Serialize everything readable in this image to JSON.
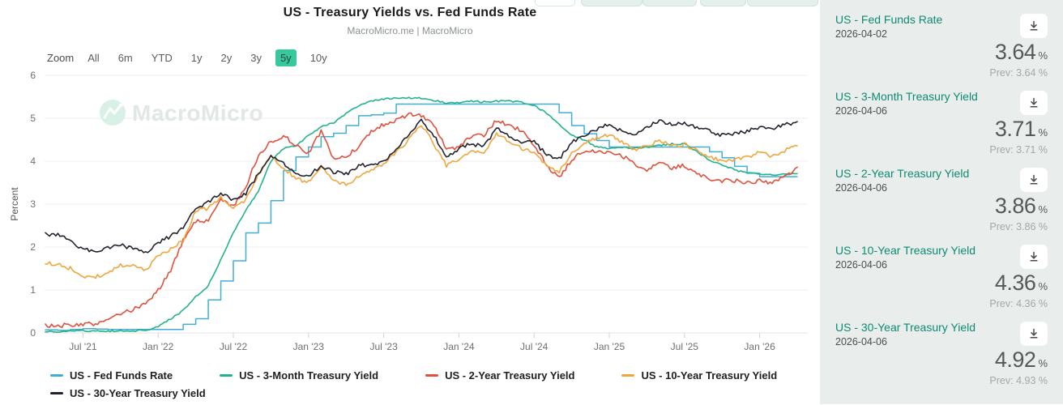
{
  "header": {
    "title": "US - Treasury Yields vs. Fed Funds Rate",
    "subtitle": "MacroMicro.me | MacroMicro"
  },
  "toolbar": {
    "label": "Zoom",
    "buttons": [
      "All",
      "6m",
      "YTD",
      "1y",
      "2y",
      "3y",
      "5y",
      "10y"
    ],
    "selected": "5y"
  },
  "watermark": "MacroMicro",
  "chart_data": {
    "type": "line",
    "title": "US - Treasury Yields vs. Fed Funds Rate",
    "subtitle": "MacroMicro.me | MacroMicro",
    "xlabel": "",
    "ylabel": "Percent",
    "ylim": [
      0,
      6
    ],
    "y_ticks": [
      0,
      1,
      2,
      3,
      4,
      5,
      6
    ],
    "grid": "horizontal",
    "legend_position": "bottom",
    "x_start": "2021-04",
    "x_end": "2026-04",
    "frequency": "monthly",
    "x_tick_labels": [
      "Jul '21",
      "Jan '22",
      "Jul '22",
      "Jan '23",
      "Jul '23",
      "Jan '24",
      "Jul '24",
      "Jan '25",
      "Jul '25",
      "Jan '26"
    ],
    "series": [
      {
        "name": "US - Fed Funds Rate",
        "color": "#41aed4",
        "style": "step",
        "values": [
          0.07,
          0.06,
          0.08,
          0.1,
          0.09,
          0.08,
          0.08,
          0.08,
          0.08,
          0.08,
          0.08,
          0.2,
          0.33,
          0.77,
          1.21,
          1.68,
          2.33,
          2.56,
          3.08,
          3.78,
          4.1,
          4.33,
          4.57,
          4.65,
          4.83,
          5.06,
          5.08,
          5.12,
          5.33,
          5.33,
          5.33,
          5.33,
          5.33,
          5.33,
          5.33,
          5.33,
          5.33,
          5.33,
          5.33,
          5.33,
          5.33,
          5.13,
          4.83,
          4.64,
          4.48,
          4.33,
          4.33,
          4.33,
          4.33,
          4.33,
          4.33,
          4.33,
          4.33,
          4.22,
          4.08,
          3.88,
          3.72,
          3.64,
          3.64,
          3.64,
          3.64
        ]
      },
      {
        "name": "US - 3-Month Treasury Yield",
        "color": "#23b28e",
        "style": "line",
        "values": [
          0.02,
          0.02,
          0.04,
          0.05,
          0.05,
          0.04,
          0.05,
          0.05,
          0.06,
          0.15,
          0.33,
          0.52,
          0.85,
          1.1,
          1.7,
          2.35,
          2.85,
          3.3,
          4.0,
          4.3,
          4.35,
          4.6,
          4.8,
          4.9,
          5.1,
          5.3,
          5.4,
          5.45,
          5.48,
          5.48,
          5.47,
          5.42,
          5.35,
          5.37,
          5.4,
          5.38,
          5.4,
          5.4,
          5.38,
          5.3,
          5.12,
          4.85,
          4.6,
          4.5,
          4.33,
          4.3,
          4.32,
          4.3,
          4.33,
          4.36,
          4.4,
          4.4,
          4.22,
          4.02,
          3.92,
          3.8,
          3.72,
          3.7,
          3.68,
          3.69,
          3.71
        ]
      },
      {
        "name": "US - 2-Year Treasury Yield",
        "color": "#e2503c",
        "style": "line",
        "values": [
          0.16,
          0.15,
          0.2,
          0.2,
          0.22,
          0.27,
          0.45,
          0.55,
          0.7,
          1.0,
          1.45,
          2.15,
          2.6,
          2.62,
          3.1,
          2.95,
          3.4,
          4.15,
          4.45,
          4.6,
          4.35,
          4.2,
          4.7,
          4.05,
          4.1,
          4.35,
          4.7,
          4.85,
          4.95,
          5.1,
          5.05,
          4.85,
          4.3,
          4.32,
          4.6,
          4.6,
          4.95,
          4.85,
          4.7,
          4.4,
          3.9,
          3.6,
          4.05,
          4.25,
          4.25,
          4.2,
          4.12,
          3.95,
          3.78,
          3.95,
          3.85,
          3.9,
          3.7,
          3.6,
          3.55,
          3.55,
          3.5,
          3.55,
          3.5,
          3.62,
          3.86
        ]
      },
      {
        "name": "US - 10-Year Treasury Yield",
        "color": "#f0a63c",
        "style": "line",
        "values": [
          1.62,
          1.6,
          1.5,
          1.3,
          1.3,
          1.42,
          1.58,
          1.55,
          1.45,
          1.8,
          1.95,
          2.15,
          2.85,
          2.9,
          3.15,
          2.9,
          3.1,
          3.7,
          4.1,
          3.85,
          3.6,
          3.5,
          3.9,
          3.55,
          3.45,
          3.65,
          3.8,
          3.95,
          4.2,
          4.5,
          4.85,
          4.4,
          3.9,
          4.05,
          4.25,
          4.2,
          4.65,
          4.45,
          4.3,
          4.2,
          3.9,
          3.75,
          4.2,
          4.4,
          4.55,
          4.6,
          4.45,
          4.25,
          4.35,
          4.5,
          4.35,
          4.4,
          4.25,
          4.1,
          4.0,
          4.05,
          4.1,
          4.2,
          4.12,
          4.25,
          4.36
        ]
      },
      {
        "name": "US - 30-Year Treasury Yield",
        "color": "#23222f",
        "style": "line",
        "values": [
          2.3,
          2.28,
          2.15,
          1.95,
          1.9,
          2.0,
          2.05,
          1.95,
          1.88,
          2.1,
          2.25,
          2.45,
          2.9,
          3.05,
          3.25,
          3.1,
          3.25,
          3.7,
          4.15,
          3.95,
          3.7,
          3.65,
          3.9,
          3.75,
          3.7,
          3.9,
          3.9,
          4.0,
          4.3,
          4.6,
          4.95,
          4.6,
          4.1,
          4.3,
          4.4,
          4.35,
          4.75,
          4.6,
          4.45,
          4.45,
          4.15,
          4.05,
          4.45,
          4.6,
          4.75,
          4.85,
          4.7,
          4.6,
          4.8,
          4.95,
          4.85,
          4.9,
          4.78,
          4.7,
          4.6,
          4.65,
          4.7,
          4.8,
          4.76,
          4.85,
          4.92
        ]
      }
    ]
  },
  "sidebar": {
    "items": [
      {
        "title": "US - Fed Funds Rate",
        "date": "2026-04-02",
        "value": "3.64",
        "unit": "%",
        "prev": "Prev: 3.64 %"
      },
      {
        "title": "US - 3-Month Treasury Yield",
        "date": "2026-04-06",
        "value": "3.71",
        "unit": "%",
        "prev": "Prev: 3.71 %"
      },
      {
        "title": "US - 2-Year Treasury Yield",
        "date": "2026-04-06",
        "value": "3.86",
        "unit": "%",
        "prev": "Prev: 3.86 %"
      },
      {
        "title": "US - 10-Year Treasury Yield",
        "date": "2026-04-06",
        "value": "4.36",
        "unit": "%",
        "prev": "Prev: 4.36 %"
      },
      {
        "title": "US - 30-Year Treasury Yield",
        "date": "2026-04-06",
        "value": "4.92",
        "unit": "%",
        "prev": "Prev: 4.93 %"
      }
    ]
  }
}
